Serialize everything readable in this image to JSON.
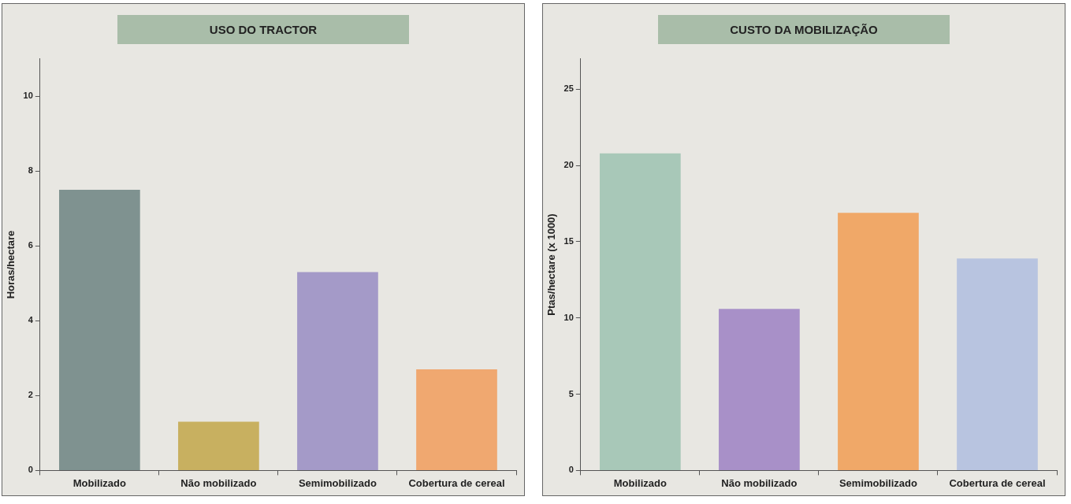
{
  "chart_data": [
    {
      "type": "bar",
      "title": "USO DO TRACTOR",
      "ylabel": "Horas/hectare",
      "categories": [
        "Mobilizado",
        "Não mobilizado",
        "Semimobilizado",
        "Cobertura de cereal"
      ],
      "values": [
        7.5,
        1.3,
        5.3,
        2.7
      ],
      "colors": [
        "#7f9290",
        "#c8b060",
        "#a49ac8",
        "#f0a870"
      ],
      "ylim": [
        0,
        11
      ],
      "yticks": [
        0,
        2,
        4,
        6,
        8,
        10
      ],
      "grid": false
    },
    {
      "type": "bar",
      "title": "CUSTO DA MOBILIZAÇÃO",
      "ylabel": "Ptas/hectare (x 1000)",
      "categories": [
        "Mobilizado",
        "Não mobilizado",
        "Semimobilizado",
        "Cobertura de cereal"
      ],
      "values": [
        20.8,
        10.6,
        16.9,
        13.9
      ],
      "colors": [
        "#a8c8b8",
        "#a890c8",
        "#f0a868",
        "#b8c4e0"
      ],
      "ylim": [
        0,
        27
      ],
      "yticks": [
        0,
        5,
        10,
        15,
        20,
        25
      ],
      "grid": false
    }
  ]
}
